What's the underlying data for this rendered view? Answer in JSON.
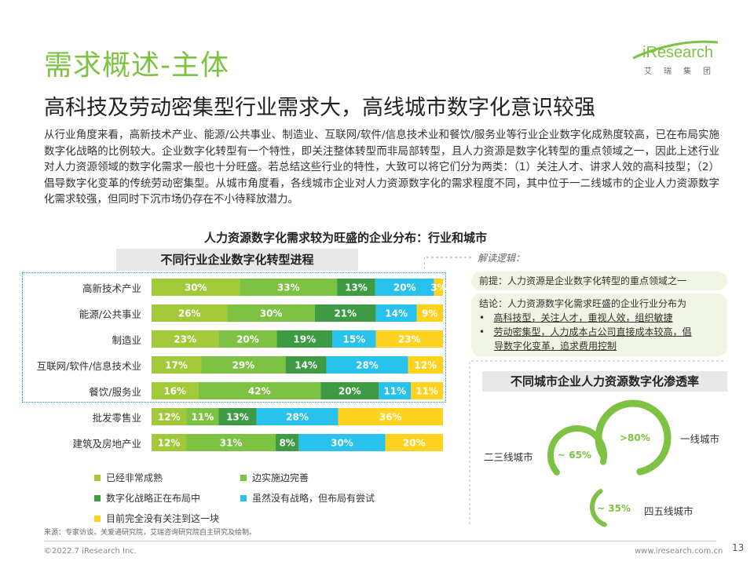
{
  "header": {
    "title": "需求概述-主体",
    "subtitle": "高科技及劳动密集型行业需求大，高线城市数字化意识较强",
    "logo_text": "iResearch",
    "logo_sub": "艾瑞集团"
  },
  "intro": "从行业角度来看，高新技术产业、能源/公共事业、制造业、互联网/软件/信息技术业和餐饮/服务业等行业企业数字化成熟度较高，已在布局实施数字化战略的比例较大。企业数字化转型有一个特性，即关注整体转型而非局部转型，且人力资源是数字化转型的重点领域之一，因此上述行业对人力资源领域的数字化需求一般也十分旺盛。若总结这些行业的特性，大致可以将它们分为两类：（1）关注人才、讲求人效的高科技型；（2）倡导数字化变革的传统劳动密集型。从城市角度看，各线城市企业对人力资源数字化的需求程度不同，其中位于一二线城市的企业人力资源数字化需求较强，但同时下沉市场仍存在不小待释放潜力。",
  "main_heading": "人力资源数字化需求较为旺盛的企业分布：行业和城市",
  "chart_data": [
    {
      "type": "bar",
      "title": "不同行业企业数字化转型进程",
      "categories": [
        "高新技术产业",
        "能源/公共事业",
        "制造业",
        "互联网/软件/信息技术业",
        "餐饮/服务业",
        "批发零售业",
        "建筑及房地产业"
      ],
      "series": [
        {
          "name": "已经非常成熟",
          "color": "#a2c93a",
          "values": [
            30,
            26,
            23,
            17,
            16,
            12,
            12
          ],
          "labels": [
            "30%",
            "26%",
            "23%",
            "17%",
            "16%",
            "12%",
            "12%"
          ]
        },
        {
          "name": "边实施边完善",
          "color": "#7dc242",
          "values": [
            33,
            30,
            20,
            29,
            42,
            11,
            31
          ],
          "labels": [
            "33%",
            "30%",
            "20%",
            "29%",
            "42%",
            "11%",
            "31%"
          ]
        },
        {
          "name": "数字化战略正在布局中",
          "color": "#3f9a44",
          "values": [
            13,
            21,
            19,
            14,
            20,
            13,
            8
          ],
          "labels": [
            "13%",
            "21%",
            "19%",
            "14%",
            "20%",
            "13%",
            "8%"
          ]
        },
        {
          "name": "虽然没有战略，但布局有尝试",
          "color": "#29c2ec",
          "values": [
            20,
            14,
            15,
            28,
            11,
            28,
            30
          ],
          "labels": [
            "20%",
            "14%",
            "15%",
            "28%",
            "11%",
            "28%",
            "30%"
          ]
        },
        {
          "name": "目前完全没有关注到这一块",
          "color": "#ffd21f",
          "values": [
            3,
            9,
            23,
            12,
            11,
            36,
            20
          ],
          "labels": [
            "3%",
            "9%",
            "23%",
            "12%",
            "11%",
            "36%",
            "20%"
          ]
        }
      ]
    },
    {
      "type": "pie",
      "title": "不同城市企业人力资源数字化渗透率",
      "categories": [
        "一线城市",
        "二三线城市",
        "四五线城市"
      ],
      "values": [
        80,
        65,
        35
      ],
      "labels": [
        ">80%",
        "~ 65%",
        "~ 35%"
      ]
    }
  ],
  "logic": {
    "label": "解读逻辑：",
    "premise": "前提：人力资源是企业数字化转型的重点领域之一",
    "conclusion_title": "结论：人力资源数字化需求旺盛的企业行业分布为",
    "bullet1": "高科技型，关注人才，重视人效，组织敏捷",
    "bullet2_line1": "劳动密集型，人力成本占公司直接成本较高，倡",
    "bullet2_line2": "导数字化变革，追求费用控制"
  },
  "source": "来源：专家访谈，关爱通研究院，艾瑞咨询研究院自主研究及绘制。",
  "footer": {
    "copyright": "©2022.7 iResearch Inc.",
    "url": "www.iresearch.com.cn",
    "page": "13"
  },
  "colors": {
    "accent": "#7dc242",
    "panel_bg": "#eff4e3",
    "ring": "#7dc242",
    "dashed_box": "#1aa7d8"
  }
}
